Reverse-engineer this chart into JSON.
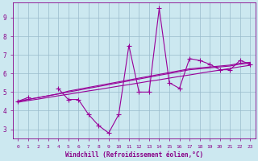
{
  "x": [
    0,
    1,
    2,
    3,
    4,
    5,
    6,
    7,
    8,
    9,
    10,
    11,
    12,
    13,
    14,
    15,
    16,
    17,
    18,
    19,
    20,
    21,
    22,
    23
  ],
  "main_line": [
    4.5,
    4.7,
    null,
    null,
    5.2,
    4.6,
    4.6,
    3.8,
    3.2,
    2.8,
    3.8,
    7.5,
    5.0,
    5.0,
    9.5,
    5.5,
    5.2,
    6.8,
    6.7,
    6.5,
    6.2,
    6.2,
    6.7,
    6.5
  ],
  "reg1": [
    4.45,
    4.54,
    4.62,
    4.71,
    4.8,
    4.88,
    4.97,
    5.06,
    5.14,
    5.23,
    5.32,
    5.4,
    5.49,
    5.58,
    5.66,
    5.75,
    5.84,
    5.92,
    6.01,
    6.1,
    6.18,
    6.27,
    6.36,
    6.44
  ],
  "reg2": [
    4.5,
    4.6,
    4.7,
    4.8,
    4.9,
    5.0,
    5.1,
    5.2,
    5.3,
    5.4,
    5.5,
    5.6,
    5.7,
    5.8,
    5.9,
    6.0,
    6.1,
    6.2,
    6.25,
    6.3,
    6.35,
    6.4,
    6.5,
    6.55
  ],
  "reg3": [
    4.5,
    4.6,
    4.7,
    4.8,
    4.9,
    5.05,
    5.15,
    5.25,
    5.35,
    5.45,
    5.55,
    5.65,
    5.75,
    5.85,
    5.95,
    6.05,
    6.15,
    6.25,
    6.3,
    6.35,
    6.4,
    6.45,
    6.55,
    6.6
  ],
  "xlim_min": -0.5,
  "xlim_max": 23.5,
  "ylim_min": 2.5,
  "ylim_max": 9.8,
  "yticks": [
    3,
    4,
    5,
    6,
    7,
    8,
    9
  ],
  "xticks": [
    0,
    1,
    2,
    3,
    4,
    5,
    6,
    7,
    8,
    9,
    10,
    11,
    12,
    13,
    14,
    15,
    16,
    17,
    18,
    19,
    20,
    21,
    22,
    23
  ],
  "xlabel": "Windchill (Refroidissement éolien,°C)",
  "line_color": "#990099",
  "bg_color": "#cce8f0",
  "grid_color": "#99bbcc",
  "font_color": "#880088",
  "marker": "+",
  "markersize": 4,
  "lw_main": 0.8,
  "lw_reg": 0.8
}
